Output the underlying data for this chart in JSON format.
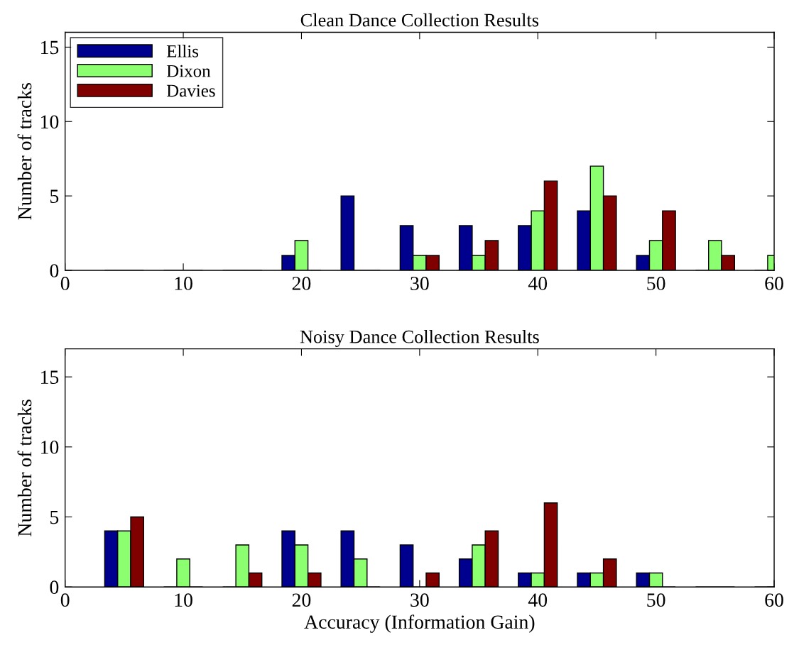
{
  "chart_data": [
    {
      "type": "bar",
      "title": "Clean Dance Collection Results",
      "ylabel": "Number of tracks",
      "x": [
        5,
        10,
        15,
        20,
        25,
        30,
        35,
        40,
        45,
        50,
        55,
        60
      ],
      "xlim": [
        0,
        60
      ],
      "xticks": [
        0,
        10,
        20,
        30,
        40,
        50,
        60
      ],
      "ylim": [
        0,
        16
      ],
      "yticks": [
        0,
        5,
        10,
        15
      ],
      "grid": false,
      "legend": "top left",
      "series": [
        {
          "name": "Ellis",
          "color": "#00008f",
          "values": [
            0,
            0,
            0,
            1,
            5,
            3,
            3,
            3,
            4,
            1,
            0,
            0
          ]
        },
        {
          "name": "Dixon",
          "color": "#8cff70",
          "values": [
            0,
            0,
            0,
            2,
            0,
            1,
            1,
            4,
            7,
            2,
            2,
            1
          ]
        },
        {
          "name": "Davies",
          "color": "#800000",
          "values": [
            0,
            0,
            0,
            0,
            0,
            1,
            2,
            6,
            5,
            4,
            1,
            0
          ]
        }
      ]
    },
    {
      "type": "bar",
      "title": "Noisy Dance Collection Results",
      "xlabel": "Accuracy (Information Gain)",
      "ylabel": "Number of tracks",
      "x": [
        5,
        10,
        15,
        20,
        25,
        30,
        35,
        40,
        45,
        50,
        55,
        60
      ],
      "xlim": [
        0,
        60
      ],
      "xticks": [
        0,
        10,
        20,
        30,
        40,
        50,
        60
      ],
      "ylim": [
        0,
        17
      ],
      "yticks": [
        0,
        5,
        10,
        15
      ],
      "grid": false,
      "series": [
        {
          "color": "#00008f",
          "values": [
            4,
            0,
            0,
            4,
            4,
            3,
            2,
            1,
            1,
            1,
            0,
            0
          ]
        },
        {
          "color": "#8cff70",
          "values": [
            4,
            2,
            3,
            3,
            2,
            0,
            3,
            1,
            1,
            1,
            0,
            0
          ]
        },
        {
          "color": "#800000",
          "values": [
            5,
            0,
            1,
            1,
            0,
            1,
            4,
            6,
            2,
            0,
            0,
            0
          ]
        }
      ]
    }
  ]
}
